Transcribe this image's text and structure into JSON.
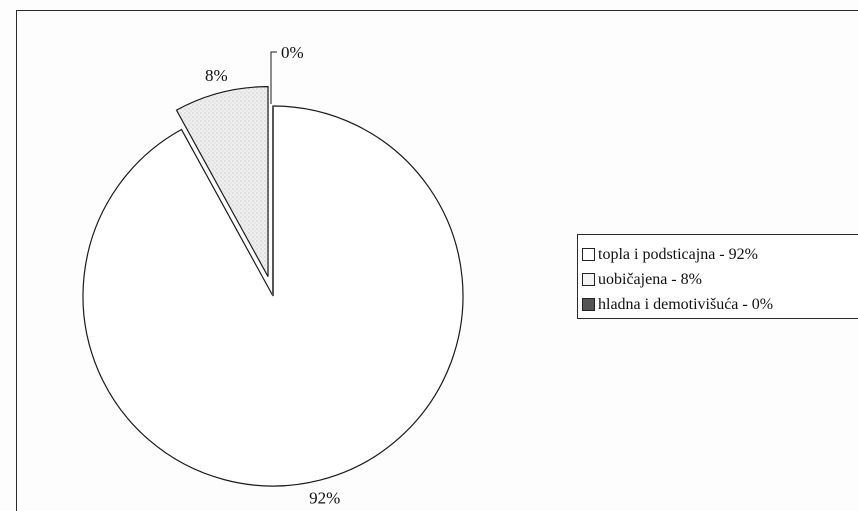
{
  "chart_data": {
    "type": "pie",
    "title": "",
    "slices": [
      {
        "name": "topla i podsticajna",
        "value": 92,
        "label": "92%",
        "legend": "topla i podsticajna - 92%",
        "color": "#ffffff",
        "exploded": false
      },
      {
        "name": "uobičajena",
        "value": 8,
        "label": "8%",
        "legend": "uobičajena - 8%",
        "color": "#ececec",
        "exploded": true
      },
      {
        "name": "hladna i demotivišuća",
        "value": 0,
        "label": "0%",
        "legend": "hladna i demotivišuća - 0%",
        "color": "#555555",
        "exploded": false
      }
    ],
    "legend_position": "right",
    "start": "top",
    "direction": "clockwise"
  }
}
